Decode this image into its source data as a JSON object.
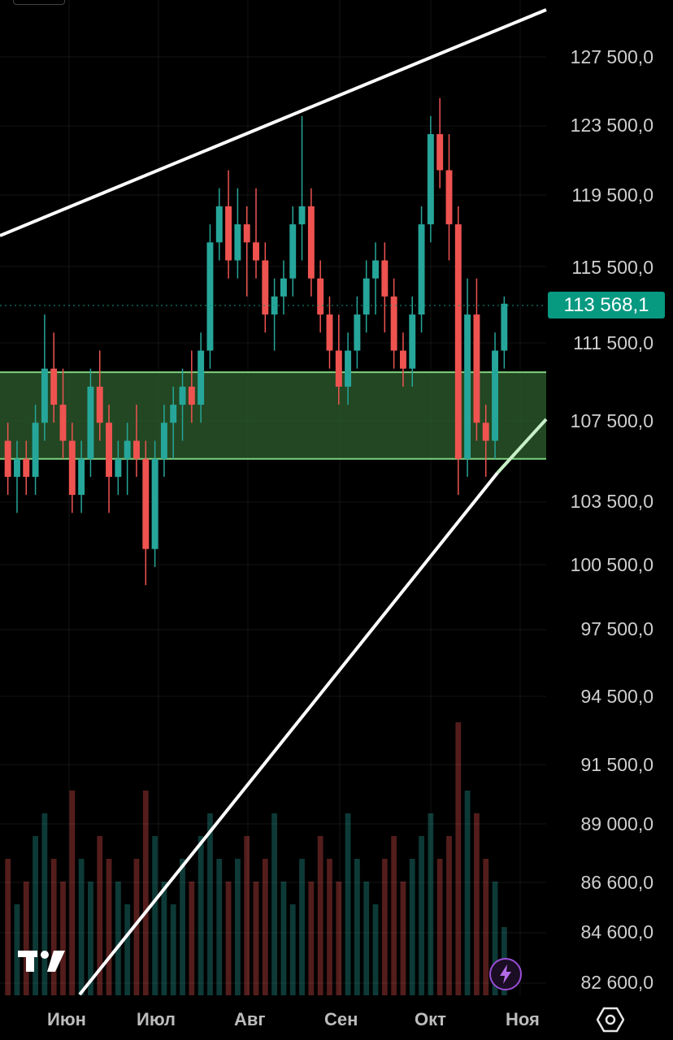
{
  "chart_data": {
    "type": "candlestick",
    "price_axis": {
      "labels": [
        "127 500,0",
        "123 500,0",
        "119 500,0",
        "115 500,0",
        "111 500,0",
        "107 500,0",
        "103 500,0",
        "100 500,0",
        "97 500,0",
        "94 500,0",
        "91 500,0",
        "89 000,0",
        "86 600,0",
        "84 600,0",
        "82 600,0"
      ]
    },
    "time_axis": {
      "labels": [
        "Июн",
        "Июл",
        "Авг",
        "Сен",
        "Окт",
        "Ноя"
      ]
    },
    "current_price": "113 568,1",
    "support_zone": {
      "low": 105000,
      "high": 109800
    },
    "ohlc": [
      [
        106,
        107,
        103,
        104
      ],
      [
        104,
        106,
        102,
        105
      ],
      [
        105,
        106,
        103,
        104
      ],
      [
        104,
        108,
        103,
        107
      ],
      [
        107,
        113,
        106,
        110
      ],
      [
        110,
        112,
        107,
        108
      ],
      [
        108,
        110,
        105,
        106
      ],
      [
        106,
        107,
        102,
        103
      ],
      [
        103,
        106,
        102,
        105
      ],
      [
        105,
        110,
        104,
        109
      ],
      [
        109,
        111,
        106,
        107
      ],
      [
        107,
        108,
        102,
        104
      ],
      [
        104,
        106,
        103,
        105
      ],
      [
        105,
        107,
        103,
        106
      ],
      [
        106,
        108,
        104,
        105
      ],
      [
        105,
        106,
        98,
        100
      ],
      [
        100,
        106,
        99,
        105
      ],
      [
        105,
        108,
        104,
        107
      ],
      [
        107,
        109,
        105,
        108
      ],
      [
        108,
        110,
        106,
        109
      ],
      [
        109,
        111,
        107,
        108
      ],
      [
        108,
        112,
        107,
        111
      ],
      [
        111,
        118,
        110,
        117
      ],
      [
        117,
        120,
        116,
        119
      ],
      [
        119,
        121,
        115,
        116
      ],
      [
        116,
        120,
        115,
        118
      ],
      [
        118,
        119,
        114,
        117
      ],
      [
        117,
        120,
        115,
        116
      ],
      [
        116,
        117,
        112,
        113
      ],
      [
        113,
        115,
        111,
        114
      ],
      [
        114,
        116,
        113,
        115
      ],
      [
        115,
        119,
        114,
        118
      ],
      [
        118,
        124,
        116,
        119
      ],
      [
        119,
        120,
        114,
        115
      ],
      [
        115,
        116,
        112,
        113
      ],
      [
        113,
        114,
        110,
        111
      ],
      [
        111,
        113,
        108,
        109
      ],
      [
        109,
        112,
        108,
        111
      ],
      [
        111,
        114,
        110,
        113
      ],
      [
        113,
        116,
        112,
        115
      ],
      [
        115,
        117,
        113,
        116
      ],
      [
        116,
        117,
        112,
        114
      ],
      [
        114,
        115,
        110,
        111
      ],
      [
        111,
        112,
        109,
        110
      ],
      [
        110,
        114,
        109,
        113
      ],
      [
        113,
        119,
        112,
        118
      ],
      [
        118,
        124,
        117,
        123
      ],
      [
        123,
        125,
        120,
        121
      ],
      [
        121,
        123,
        116,
        118
      ],
      [
        118,
        119,
        103,
        105
      ],
      [
        105,
        115,
        104,
        113
      ],
      [
        113,
        115,
        106,
        107
      ],
      [
        107,
        108,
        104,
        106
      ],
      [
        106,
        112,
        105,
        111
      ],
      [
        111,
        114,
        110,
        113.6
      ]
    ],
    "volume": [
      6,
      4,
      5,
      7,
      8,
      6,
      5,
      9,
      6,
      5,
      7,
      6,
      5,
      4,
      6,
      9,
      7,
      5,
      4,
      6,
      5,
      7,
      8,
      6,
      5,
      6,
      7,
      5,
      6,
      8,
      5,
      4,
      6,
      5,
      7,
      6,
      5,
      8,
      6,
      5,
      4,
      6,
      7,
      5,
      6,
      7,
      8,
      6,
      7,
      12,
      9,
      8,
      6,
      5,
      3
    ]
  },
  "colors": {
    "up": "#26a69a",
    "down": "#ef5350",
    "zone_fill": "#2e5f2e",
    "zone_line": "#7fd17f",
    "trend": "#ffffff",
    "trend_light": "#c8f0c8"
  },
  "icons": {
    "logo": "tradingview-logo-icon",
    "bolt": "lightning-bolt-icon",
    "settings": "hexagon-settings-icon"
  }
}
